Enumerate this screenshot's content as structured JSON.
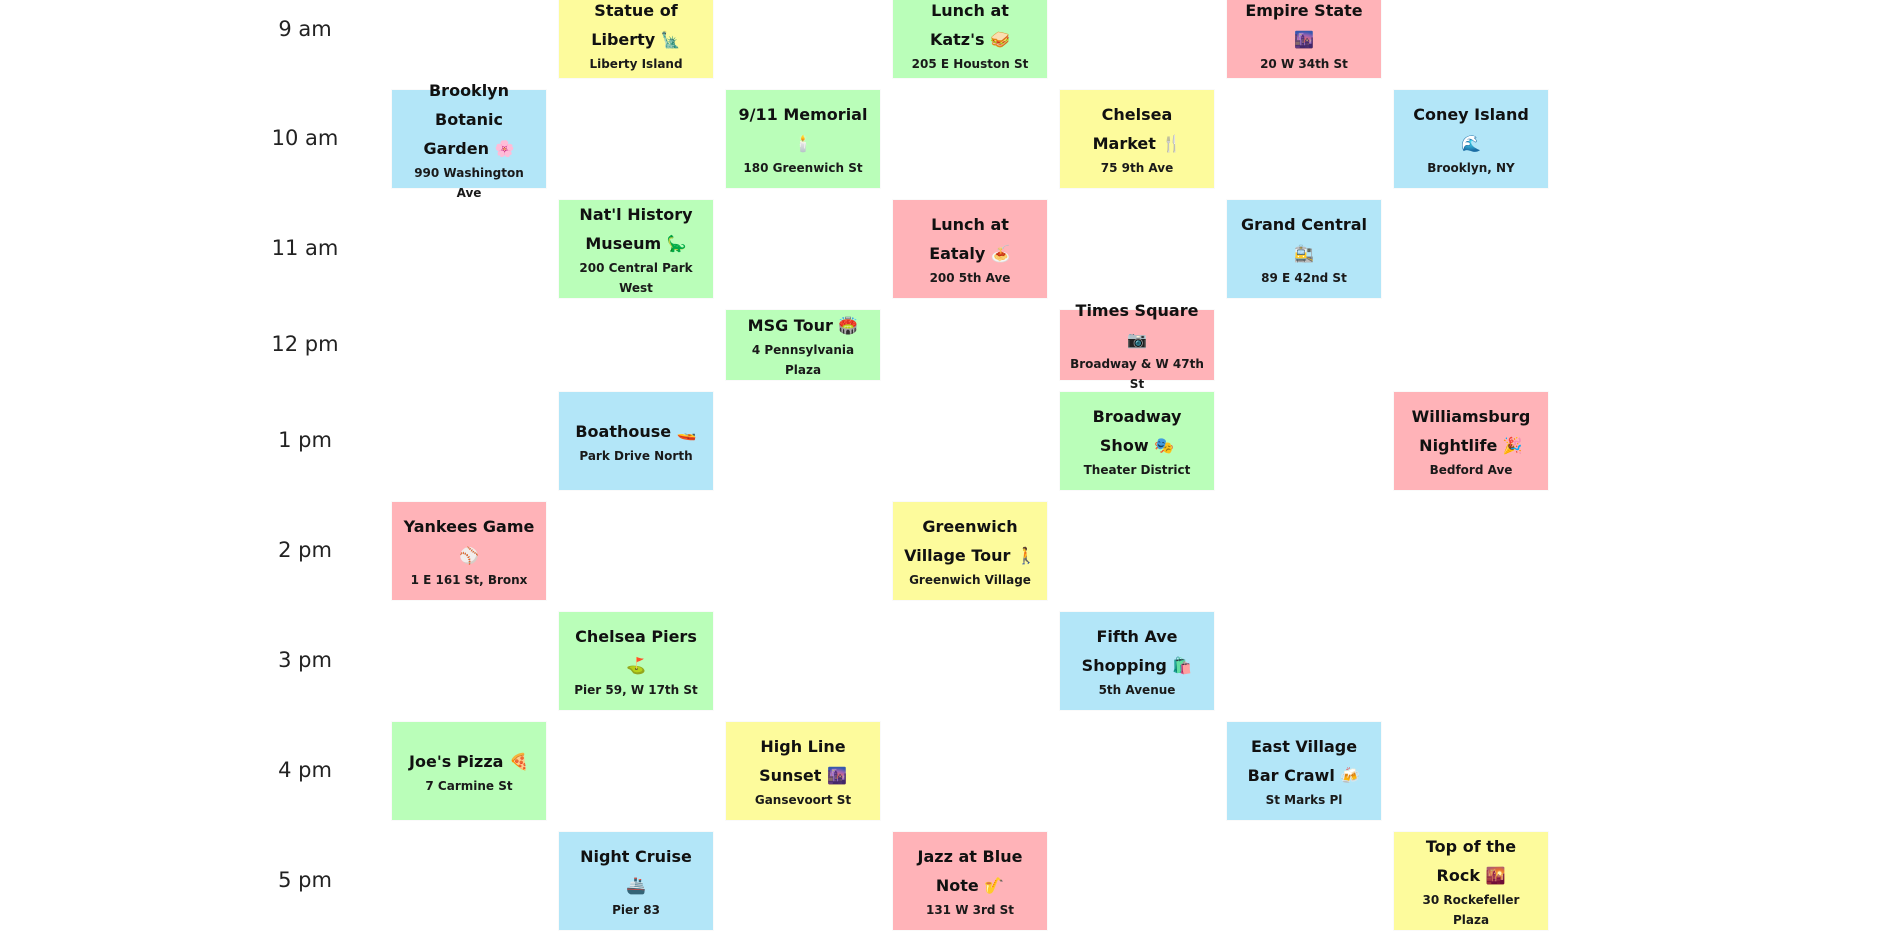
{
  "time_labels": [
    "9 am",
    "10 am",
    "11 am",
    "12 pm",
    "1 pm",
    "2 pm",
    "3 pm",
    "4 pm",
    "5 pm"
  ],
  "colors": {
    "yellow": "#fdfb9c",
    "green": "#bafeb9",
    "red": "#ffb3b8",
    "blue": "#b3e6f8"
  },
  "events": [
    {
      "title": "Statue of Liberty 🗽",
      "location": "Liberty Island",
      "color": "yellow",
      "day": 2,
      "time": "9 am"
    },
    {
      "title": "Lunch at Katz's 🥪",
      "location": "205 E Houston St",
      "color": "green",
      "day": 4,
      "time": "9 am"
    },
    {
      "title": "Empire State 🌆",
      "location": "20 W 34th St",
      "color": "red",
      "day": 6,
      "time": "9 am"
    },
    {
      "title": "Brooklyn Botanic Garden 🌸",
      "location": "990 Washington Ave",
      "color": "blue",
      "day": 1,
      "time": "10 am"
    },
    {
      "title": "9/11 Memorial 🕯️",
      "location": "180 Greenwich St",
      "color": "green",
      "day": 3,
      "time": "10 am"
    },
    {
      "title": "Chelsea Market 🍴",
      "location": "75 9th Ave",
      "color": "yellow",
      "day": 5,
      "time": "10 am"
    },
    {
      "title": "Coney Island 🌊",
      "location": "Brooklyn, NY",
      "color": "blue",
      "day": 7,
      "time": "10 am"
    },
    {
      "title": "Nat'l History Museum 🦕",
      "location": "200 Central Park West",
      "color": "green",
      "day": 2,
      "time": "11 am"
    },
    {
      "title": "Lunch at Eataly 🍝",
      "location": "200 5th Ave",
      "color": "red",
      "day": 4,
      "time": "11 am"
    },
    {
      "title": "Grand Central 🚉",
      "location": "89 E 42nd St",
      "color": "blue",
      "day": 6,
      "time": "11 am"
    },
    {
      "title": "MSG Tour 🏟️",
      "location": "4 Pennsylvania Plaza",
      "color": "green",
      "day": 3,
      "time": "12 pm"
    },
    {
      "title": "Times Square 📷",
      "location": "Broadway & W 47th St",
      "color": "red",
      "day": 5,
      "time": "12 pm"
    },
    {
      "title": "Boathouse 🚤",
      "location": "Park Drive North",
      "color": "blue",
      "day": 2,
      "time": "1 pm"
    },
    {
      "title": "Broadway Show 🎭",
      "location": "Theater District",
      "color": "green",
      "day": 5,
      "time": "1 pm"
    },
    {
      "title": "Williamsburg Nightlife 🎉",
      "location": "Bedford Ave",
      "color": "red",
      "day": 7,
      "time": "1 pm"
    },
    {
      "title": "Yankees Game ⚾",
      "location": "1 E 161 St, Bronx",
      "color": "red",
      "day": 1,
      "time": "2 pm"
    },
    {
      "title": "Greenwich Village Tour 🚶",
      "location": "Greenwich Village",
      "color": "yellow",
      "day": 4,
      "time": "2 pm"
    },
    {
      "title": "Chelsea Piers ⛳",
      "location": "Pier 59, W 17th St",
      "color": "green",
      "day": 2,
      "time": "3 pm"
    },
    {
      "title": "Fifth Ave Shopping 🛍️",
      "location": "5th Avenue",
      "color": "blue",
      "day": 5,
      "time": "3 pm"
    },
    {
      "title": "Joe's Pizza 🍕",
      "location": "7 Carmine St",
      "color": "green",
      "day": 1,
      "time": "4 pm"
    },
    {
      "title": "High Line Sunset 🌆",
      "location": "Gansevoort St",
      "color": "yellow",
      "day": 3,
      "time": "4 pm"
    },
    {
      "title": "East Village Bar Crawl 🍻",
      "location": "St Marks Pl",
      "color": "blue",
      "day": 6,
      "time": "4 pm"
    },
    {
      "title": "Night Cruise 🚢",
      "location": "Pier 83",
      "color": "blue",
      "day": 2,
      "time": "5 pm"
    },
    {
      "title": "Jazz at Blue Note 🎷",
      "location": "131 W 3rd St",
      "color": "red",
      "day": 4,
      "time": "5 pm"
    },
    {
      "title": "Top of the Rock 🌇",
      "location": "30 Rockefeller Plaza",
      "color": "yellow",
      "day": 7,
      "time": "5 pm"
    }
  ]
}
